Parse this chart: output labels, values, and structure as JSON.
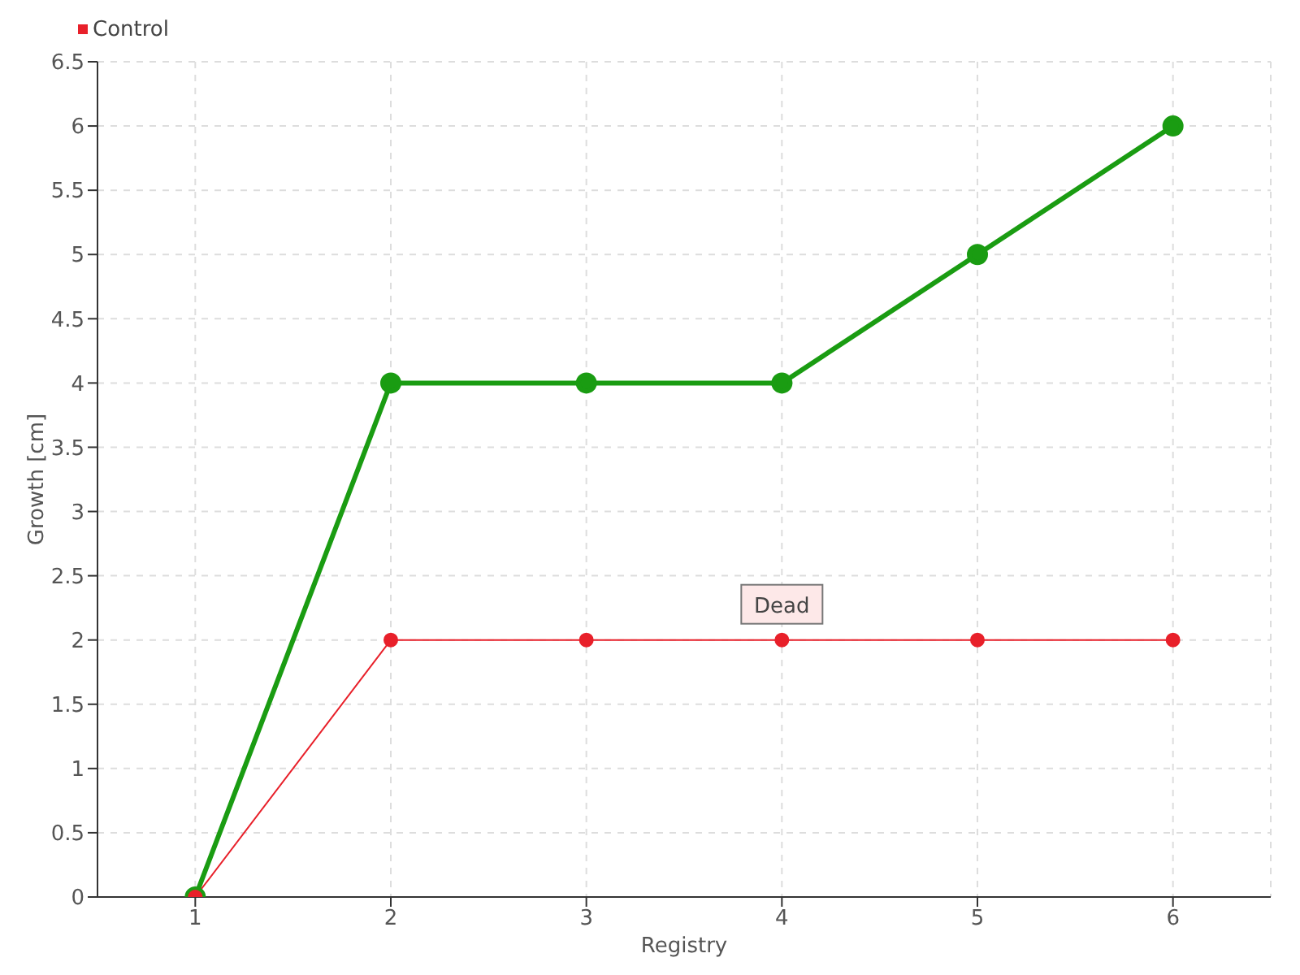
{
  "chart_data": {
    "type": "line",
    "xlabel": "Registry",
    "ylabel": "Growth [cm]",
    "categories": [
      "1",
      "2",
      "3",
      "4",
      "5",
      "6"
    ],
    "series": [
      {
        "color": "#1a9c12",
        "values": [
          0,
          4,
          4,
          4,
          5,
          6
        ]
      },
      {
        "name": "Control",
        "color": "#e8202a",
        "values": [
          0,
          2,
          2,
          2,
          2,
          2
        ]
      }
    ],
    "ylim": [
      0,
      6.5
    ],
    "yticks": [
      0,
      0.5,
      1,
      1.5,
      2,
      2.5,
      3,
      3.5,
      4,
      4.5,
      5,
      5.5,
      6,
      6.5
    ],
    "annotations": [
      {
        "text": "Dead",
        "x": "4",
        "y": 2
      }
    ],
    "grid": true,
    "legend": "top left",
    "marker": "circle",
    "line_style": "solid"
  }
}
